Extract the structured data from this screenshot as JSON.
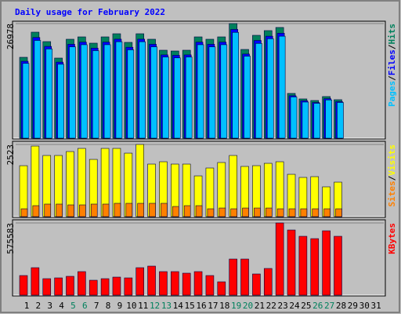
{
  "title": "Daily usage for February 2022",
  "separator": "/",
  "weekend_days": [
    5,
    6,
    12,
    13,
    19,
    20,
    26,
    27
  ],
  "weekend_color": "#00805c",
  "chart_data": [
    {
      "type": "bar",
      "ylim": [
        0,
        26978
      ],
      "yticks": [
        26978
      ],
      "series": [
        {
          "name": "Hits",
          "color": "#00805c",
          "values": [
            19034,
            24948,
            22730,
            18850,
            23285,
            23839,
            22361,
            23839,
            24578,
            22546,
            24578,
            23285,
            20698,
            20513,
            20698,
            23839,
            23285,
            23839,
            26978,
            20882,
            24209,
            25318,
            26057,
            10534,
            9240,
            8870,
            9794,
            9055,
            null,
            null,
            null
          ]
        },
        {
          "name": "Files",
          "color": "#0000ff",
          "values": [
            18100,
            23700,
            21600,
            17900,
            22100,
            22600,
            21200,
            22600,
            23300,
            21400,
            23300,
            22100,
            19600,
            19500,
            19600,
            22600,
            22100,
            22600,
            25600,
            19800,
            23000,
            24000,
            24700,
            10000,
            8800,
            8400,
            9300,
            8600,
            null,
            null,
            null
          ]
        },
        {
          "name": "Pages",
          "color": "#00c0ff",
          "values": [
            17600,
            23000,
            21000,
            17400,
            21500,
            22000,
            20600,
            22000,
            22700,
            20800,
            22700,
            21500,
            19100,
            18900,
            19100,
            22000,
            21500,
            22000,
            24900,
            19300,
            22300,
            23400,
            24000,
            9700,
            8500,
            8200,
            9000,
            8400,
            null,
            null,
            null
          ]
        }
      ]
    },
    {
      "type": "bar",
      "ylim": [
        0,
        2523
      ],
      "yticks": [
        2523
      ],
      "series": [
        {
          "name": "Visits",
          "color": "#ffff00",
          "values": [
            1781,
            2467,
            2138,
            2138,
            2275,
            2385,
            2001,
            2385,
            2385,
            2220,
            2523,
            1837,
            1919,
            1837,
            1837,
            1425,
            1700,
            1892,
            2138,
            1755,
            1782,
            1864,
            1919,
            1480,
            1371,
            1398,
            1042,
            1206,
            null,
            null,
            null
          ]
        },
        {
          "name": "Sites",
          "color": "#ff8000",
          "values": [
            274,
            384,
            439,
            439,
            411,
            411,
            439,
            439,
            466,
            466,
            466,
            466,
            466,
            356,
            384,
            384,
            274,
            301,
            274,
            301,
            301,
            301,
            274,
            274,
            274,
            274,
            274,
            274,
            null,
            null,
            null
          ]
        }
      ]
    },
    {
      "type": "bar",
      "ylim": [
        0,
        575583
      ],
      "yticks": [
        575583
      ],
      "categories": [
        "1",
        "2",
        "3",
        "4",
        "5",
        "6",
        "7",
        "8",
        "9",
        "10",
        "11",
        "12",
        "13",
        "14",
        "15",
        "16",
        "17",
        "18",
        "19",
        "20",
        "21",
        "22",
        "23",
        "24",
        "25",
        "26",
        "27",
        "28",
        "29",
        "30",
        "31"
      ],
      "series": [
        {
          "name": "KBytes",
          "color": "#ff0000",
          "values": [
            156400,
            218960,
            131376,
            137632,
            150144,
            187680,
            118864,
            131376,
            143888,
            137632,
            218960,
            231472,
            187680,
            187680,
            175168,
            187680,
            156400,
            106352,
            287776,
            287776,
            168912,
            212704,
            575583,
            519248,
            469200,
            450432,
            512992,
            469200,
            null,
            null,
            null
          ]
        }
      ]
    }
  ]
}
